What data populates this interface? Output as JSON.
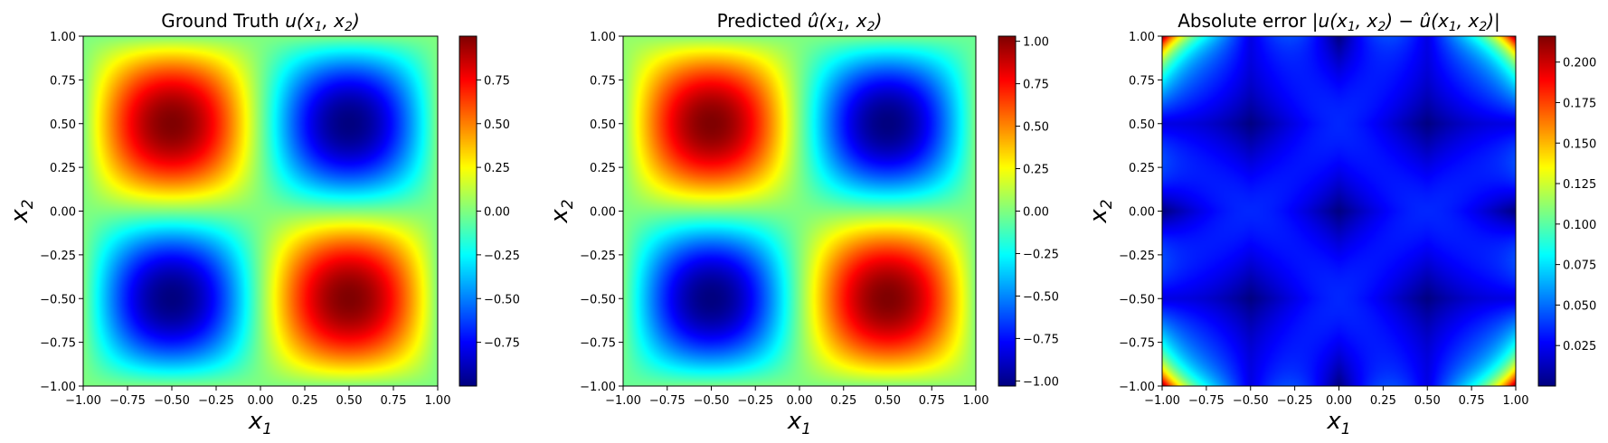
{
  "chart_data": [
    {
      "type": "heatmap",
      "title_text": "Ground Truth ",
      "title_func": "u",
      "title_args": "(x",
      "title_sub1": "1",
      "title_mid": ", x",
      "title_sub2": "2",
      "title_end": ")",
      "xlabel": "x",
      "xlabel_sub": "1",
      "ylabel": "x",
      "ylabel_sub": "2",
      "xlim": [
        -1,
        1
      ],
      "ylim": [
        -1,
        1
      ],
      "xticks": [
        "−1.00",
        "−0.75",
        "−0.50",
        "−0.25",
        "0.00",
        "0.25",
        "0.50",
        "0.75",
        "1.00"
      ],
      "yticks": [
        "−1.00",
        "−0.75",
        "−0.50",
        "−0.25",
        "0.00",
        "0.25",
        "0.50",
        "0.75",
        "1.00"
      ],
      "colormap": "jet",
      "field": "-sin(pi*x1)*sin(pi*x2)",
      "vmin": -1.0,
      "vmax": 1.0,
      "cbar_ticks": [
        -0.75,
        -0.5,
        -0.25,
        0.0,
        0.25,
        0.5,
        0.75
      ],
      "cbar_labels": [
        "−0.75",
        "−0.50",
        "−0.25",
        "0.00",
        "0.25",
        "0.50",
        "0.75"
      ]
    },
    {
      "type": "heatmap",
      "title_text": "Predicted ",
      "title_func": "û",
      "title_args": "(x",
      "title_sub1": "1",
      "title_mid": ", x",
      "title_sub2": "2",
      "title_end": ")",
      "xlabel": "x",
      "xlabel_sub": "1",
      "ylabel": "x",
      "ylabel_sub": "2",
      "xlim": [
        -1,
        1
      ],
      "ylim": [
        -1,
        1
      ],
      "xticks": [
        "−1.00",
        "−0.75",
        "−0.50",
        "−0.25",
        "0.00",
        "0.25",
        "0.50",
        "0.75",
        "1.00"
      ],
      "yticks": [
        "−1.00",
        "−0.75",
        "−0.50",
        "−0.25",
        "0.00",
        "0.25",
        "0.50",
        "0.75",
        "1.00"
      ],
      "colormap": "jet",
      "field": "predicted",
      "vmin": -1.03,
      "vmax": 1.03,
      "cbar_ticks": [
        -1.0,
        -0.75,
        -0.5,
        -0.25,
        0.0,
        0.25,
        0.5,
        0.75,
        1.0
      ],
      "cbar_labels": [
        "−1.00",
        "−0.75",
        "−0.50",
        "−0.25",
        "0.00",
        "0.25",
        "0.50",
        "0.75",
        "1.00"
      ]
    },
    {
      "type": "heatmap",
      "title_text": "Absolute error ",
      "title_func": "|u",
      "title_args": "(x",
      "title_sub1": "1",
      "title_mid": ", x",
      "title_sub2": "2",
      "title_end": ") − û(x",
      "title_sub3": "1",
      "title_mid2": ", x",
      "title_sub4": "2",
      "title_end2": ")|",
      "xlabel": "x",
      "xlabel_sub": "1",
      "ylabel": "x",
      "ylabel_sub": "2",
      "xlim": [
        -1,
        1
      ],
      "ylim": [
        -1,
        1
      ],
      "xticks": [
        "−1.00",
        "−0.75",
        "−0.50",
        "−0.25",
        "0.00",
        "0.25",
        "0.50",
        "0.75",
        "1.00"
      ],
      "yticks": [
        "−1.00",
        "−0.75",
        "−0.50",
        "−0.25",
        "0.00",
        "0.25",
        "0.50",
        "0.75",
        "1.00"
      ],
      "colormap": "jet",
      "field": "abs_error",
      "vmin": 0.0,
      "vmax": 0.216,
      "cbar_ticks": [
        0.025,
        0.05,
        0.075,
        0.1,
        0.125,
        0.15,
        0.175,
        0.2
      ],
      "cbar_labels": [
        "0.025",
        "0.050",
        "0.075",
        "0.100",
        "0.125",
        "0.150",
        "0.175",
        "0.200"
      ]
    }
  ]
}
